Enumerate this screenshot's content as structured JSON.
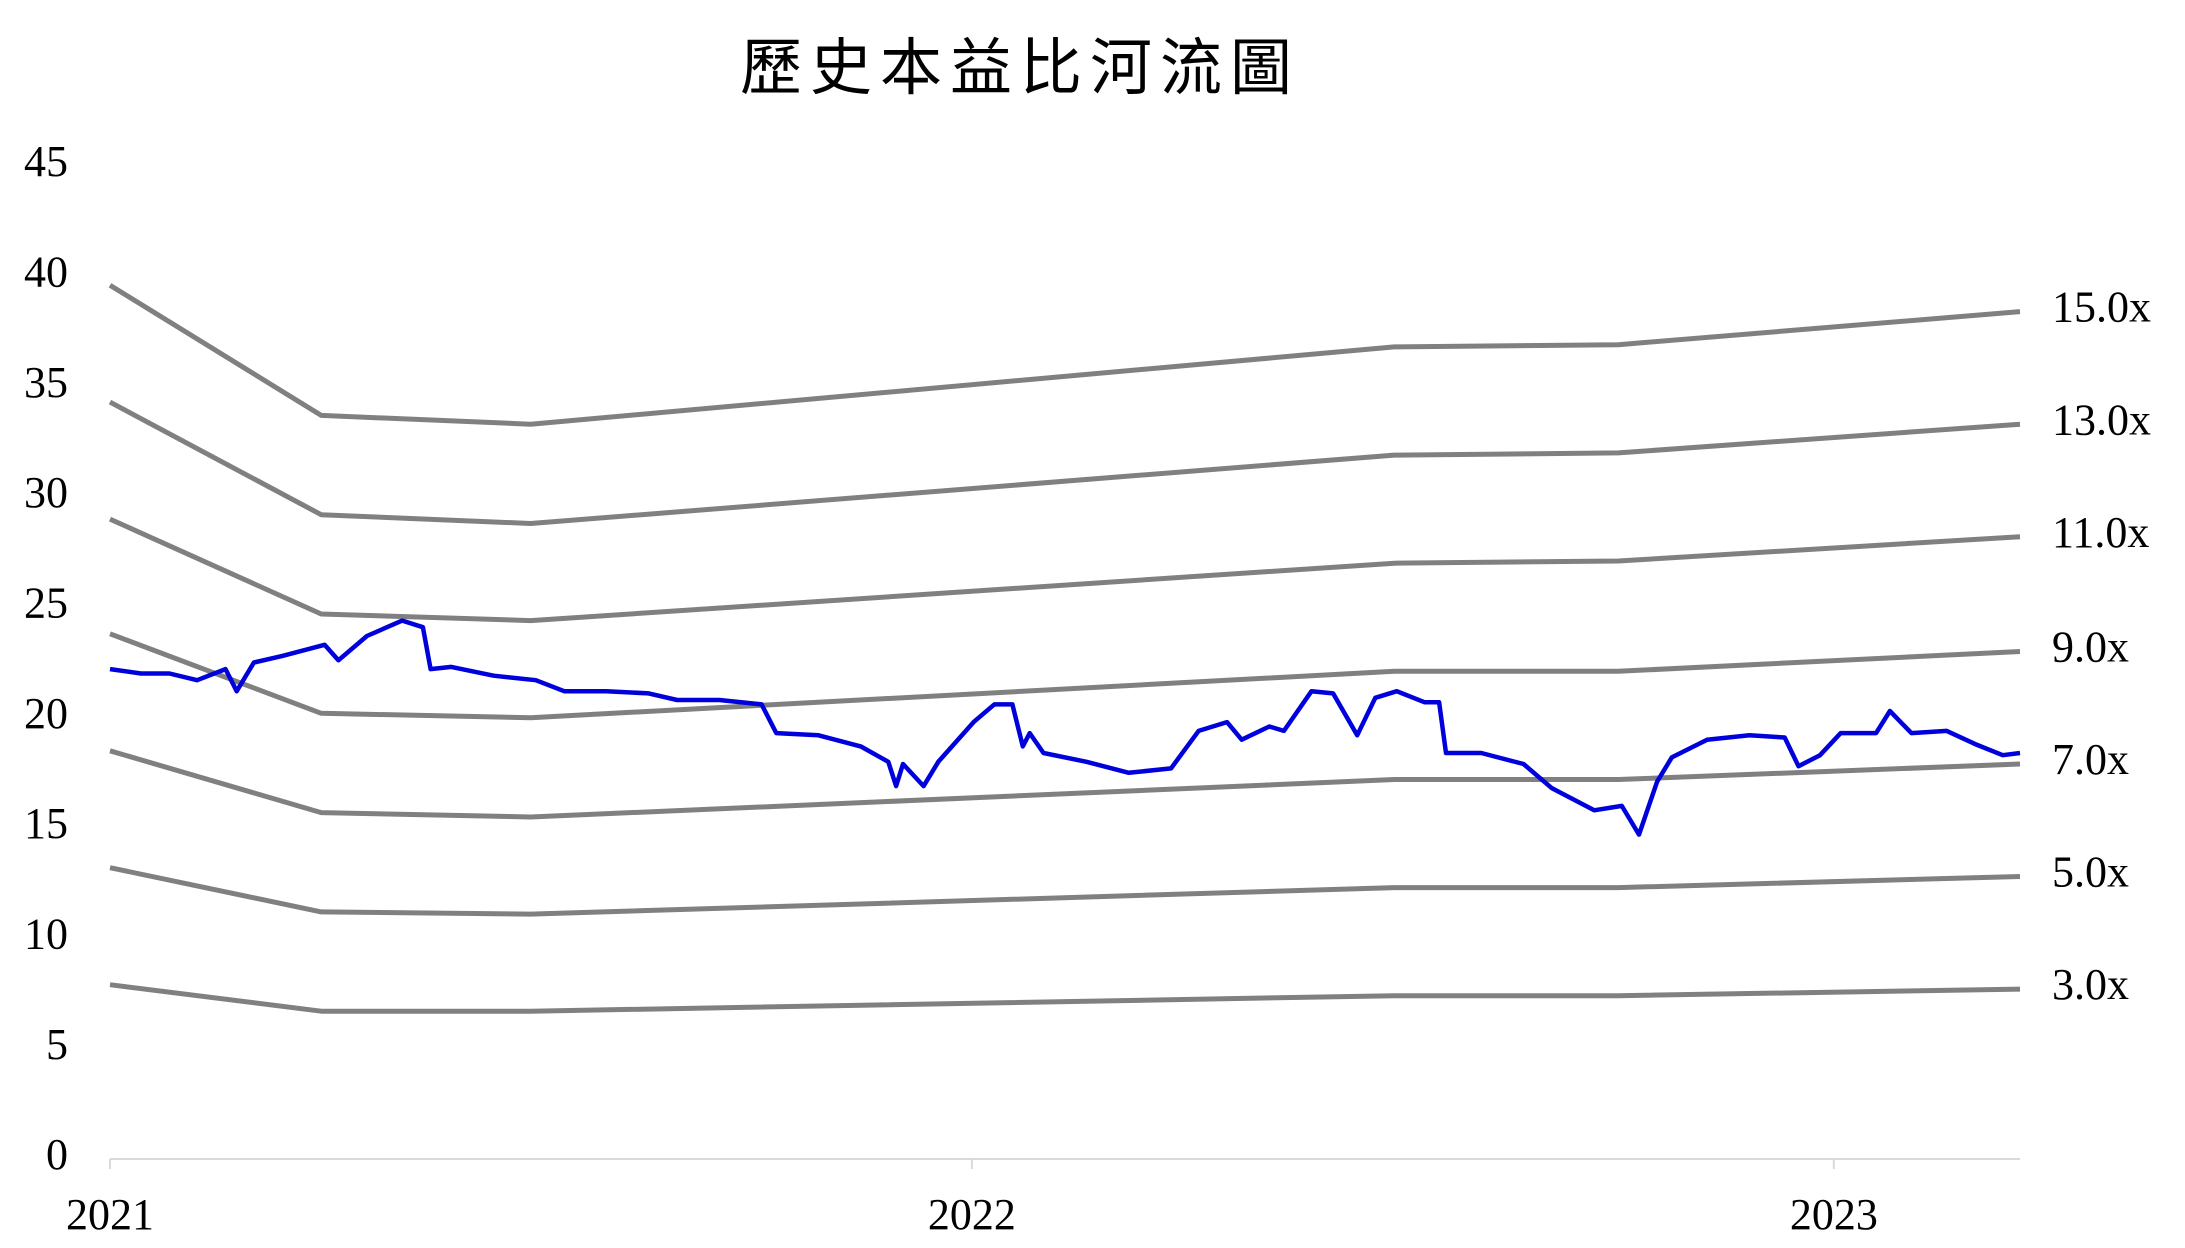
{
  "chart_data": {
    "type": "line",
    "title": "歷史本益比河流圖",
    "xlim": [
      2021,
      2023.216
    ],
    "xticks": [
      2021,
      2022,
      2023
    ],
    "ylim": [
      0,
      45
    ],
    "yticks": [
      0,
      5,
      10,
      15,
      20,
      25,
      30,
      35,
      40,
      45
    ],
    "series": [
      {
        "name": "15.0x",
        "color": "#808080",
        "x": [
          2021,
          2021.245,
          2021.488,
          2022.49,
          2022.75,
          2023.216
        ],
        "values": [
          39.6,
          33.7,
          33.3,
          36.8,
          36.9,
          38.4
        ]
      },
      {
        "name": "13.0x",
        "color": "#808080",
        "x": [
          2021,
          2021.245,
          2021.488,
          2022.49,
          2022.75,
          2023.216
        ],
        "values": [
          34.3,
          29.2,
          28.8,
          31.9,
          32.0,
          33.3
        ]
      },
      {
        "name": "11.0x",
        "color": "#808080",
        "x": [
          2021,
          2021.245,
          2021.488,
          2022.49,
          2022.75,
          2023.216
        ],
        "values": [
          29.0,
          24.7,
          24.4,
          27.0,
          27.1,
          28.2
        ]
      },
      {
        "name": "9.0x",
        "color": "#808080",
        "x": [
          2021,
          2021.245,
          2021.488,
          2022.49,
          2022.75,
          2023.216
        ],
        "values": [
          23.8,
          20.2,
          20.0,
          22.1,
          22.1,
          23.0
        ]
      },
      {
        "name": "7.0x",
        "color": "#808080",
        "x": [
          2021,
          2021.245,
          2021.488,
          2022.49,
          2022.75,
          2023.216
        ],
        "values": [
          18.5,
          15.7,
          15.5,
          17.2,
          17.2,
          17.9
        ]
      },
      {
        "name": "5.0x",
        "color": "#808080",
        "x": [
          2021,
          2021.245,
          2021.488,
          2022.49,
          2022.75,
          2023.216
        ],
        "values": [
          13.2,
          11.2,
          11.1,
          12.3,
          12.3,
          12.8
        ]
      },
      {
        "name": "3.0x",
        "color": "#808080",
        "x": [
          2021,
          2021.245,
          2021.488,
          2022.49,
          2022.75,
          2023.216
        ],
        "values": [
          7.9,
          6.7,
          6.7,
          7.4,
          7.4,
          7.7
        ]
      },
      {
        "color": "#0000dd",
        "x": [
          2021.0,
          2021.036,
          2021.069,
          2021.101,
          2021.134,
          2021.147,
          2021.167,
          2021.2,
          2021.249,
          2021.265,
          2021.298,
          2021.339,
          2021.363,
          2021.372,
          2021.396,
          2021.445,
          2021.494,
          2021.527,
          2021.576,
          2021.625,
          2021.658,
          2021.707,
          2021.756,
          2021.773,
          2021.822,
          2021.871,
          2021.903,
          2021.912,
          2021.92,
          2021.944,
          2021.961,
          2022.002,
          2022.026,
          2022.047,
          2022.059,
          2022.067,
          2022.083,
          2022.133,
          2022.182,
          2022.231,
          2022.263,
          2022.296,
          2022.313,
          2022.345,
          2022.362,
          2022.394,
          2022.419,
          2022.447,
          2022.468,
          2022.493,
          2022.525,
          2022.542,
          2022.55,
          2022.591,
          2022.64,
          2022.673,
          2022.722,
          2022.754,
          2022.774,
          2022.795,
          2022.812,
          2022.853,
          2022.902,
          2022.943,
          2022.959,
          2022.984,
          2023.008,
          2023.049,
          2023.065,
          2023.09,
          2023.131,
          2023.164,
          2023.196,
          2023.216
        ],
        "values": [
          22.2,
          22.0,
          22.0,
          21.7,
          22.2,
          21.2,
          22.5,
          22.8,
          23.3,
          22.6,
          23.7,
          24.4,
          24.1,
          22.2,
          22.3,
          21.9,
          21.7,
          21.2,
          21.2,
          21.1,
          20.8,
          20.8,
          20.6,
          19.3,
          19.2,
          18.7,
          18.0,
          16.9,
          17.9,
          16.9,
          18.0,
          19.8,
          20.6,
          20.6,
          18.7,
          19.3,
          18.4,
          18.0,
          17.5,
          17.7,
          19.4,
          19.8,
          19.0,
          19.6,
          19.4,
          21.2,
          21.1,
          19.2,
          20.9,
          21.2,
          20.7,
          20.7,
          18.4,
          18.4,
          17.9,
          16.8,
          15.8,
          16.0,
          14.7,
          17.1,
          18.2,
          19.0,
          19.2,
          19.1,
          17.8,
          18.3,
          19.3,
          19.3,
          20.3,
          19.3,
          19.4,
          18.8,
          18.3,
          18.4
        ]
      }
    ]
  }
}
